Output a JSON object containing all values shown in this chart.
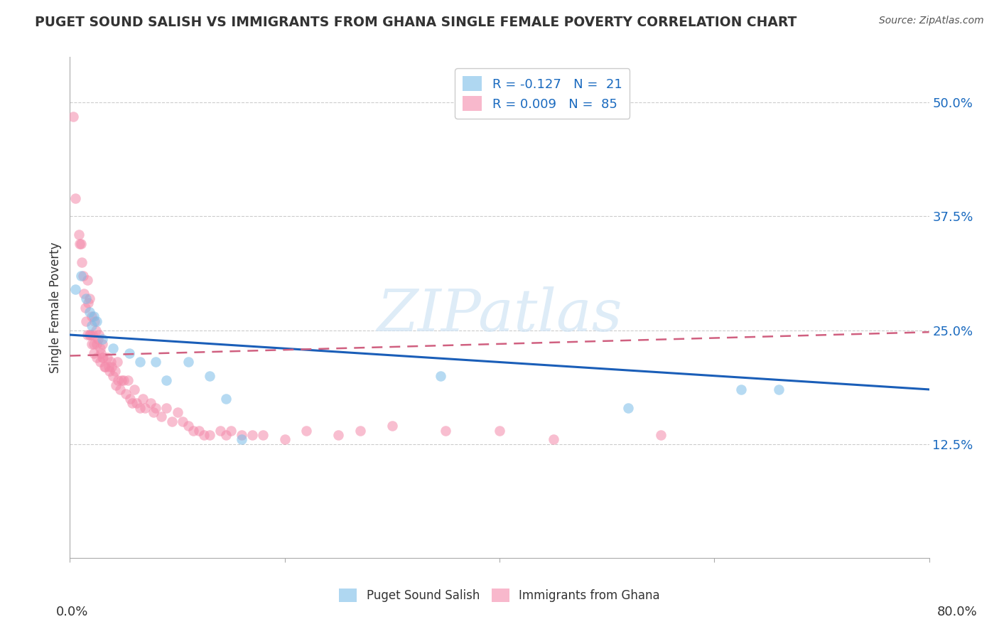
{
  "title": "PUGET SOUND SALISH VS IMMIGRANTS FROM GHANA SINGLE FEMALE POVERTY CORRELATION CHART",
  "source": "Source: ZipAtlas.com",
  "ylabel": "Single Female Poverty",
  "xlim": [
    0.0,
    0.8
  ],
  "ylim": [
    0.0,
    0.55
  ],
  "yticks": [
    0.125,
    0.25,
    0.375,
    0.5
  ],
  "ytick_labels": [
    "12.5%",
    "25.0%",
    "37.5%",
    "50.0%"
  ],
  "xtick_left_label": "0.0%",
  "xtick_right_label": "80.0%",
  "blue_scatter_x": [
    0.005,
    0.01,
    0.015,
    0.018,
    0.02,
    0.022,
    0.025,
    0.03,
    0.04,
    0.055,
    0.065,
    0.08,
    0.09,
    0.11,
    0.13,
    0.145,
    0.16,
    0.345,
    0.52,
    0.625,
    0.66
  ],
  "blue_scatter_y": [
    0.295,
    0.31,
    0.285,
    0.27,
    0.255,
    0.265,
    0.26,
    0.24,
    0.23,
    0.225,
    0.215,
    0.215,
    0.195,
    0.215,
    0.2,
    0.175,
    0.13,
    0.2,
    0.165,
    0.185,
    0.185
  ],
  "pink_scatter_x": [
    0.003,
    0.005,
    0.008,
    0.009,
    0.01,
    0.011,
    0.012,
    0.013,
    0.014,
    0.015,
    0.016,
    0.016,
    0.017,
    0.018,
    0.018,
    0.019,
    0.02,
    0.02,
    0.021,
    0.022,
    0.022,
    0.023,
    0.024,
    0.025,
    0.025,
    0.026,
    0.027,
    0.028,
    0.028,
    0.029,
    0.03,
    0.03,
    0.031,
    0.032,
    0.033,
    0.035,
    0.036,
    0.037,
    0.038,
    0.039,
    0.04,
    0.042,
    0.043,
    0.044,
    0.045,
    0.047,
    0.048,
    0.05,
    0.052,
    0.054,
    0.056,
    0.058,
    0.06,
    0.062,
    0.065,
    0.068,
    0.07,
    0.075,
    0.078,
    0.08,
    0.085,
    0.09,
    0.095,
    0.1,
    0.105,
    0.11,
    0.115,
    0.12,
    0.125,
    0.13,
    0.14,
    0.145,
    0.15,
    0.16,
    0.17,
    0.18,
    0.2,
    0.22,
    0.25,
    0.27,
    0.3,
    0.35,
    0.4,
    0.45,
    0.55
  ],
  "pink_scatter_y": [
    0.485,
    0.395,
    0.355,
    0.345,
    0.345,
    0.325,
    0.31,
    0.29,
    0.275,
    0.26,
    0.305,
    0.245,
    0.28,
    0.245,
    0.285,
    0.245,
    0.265,
    0.235,
    0.245,
    0.235,
    0.225,
    0.26,
    0.25,
    0.235,
    0.22,
    0.24,
    0.245,
    0.23,
    0.215,
    0.225,
    0.235,
    0.22,
    0.22,
    0.21,
    0.21,
    0.22,
    0.21,
    0.205,
    0.215,
    0.21,
    0.2,
    0.205,
    0.19,
    0.215,
    0.195,
    0.185,
    0.195,
    0.195,
    0.18,
    0.195,
    0.175,
    0.17,
    0.185,
    0.17,
    0.165,
    0.175,
    0.165,
    0.17,
    0.16,
    0.165,
    0.155,
    0.165,
    0.15,
    0.16,
    0.15,
    0.145,
    0.14,
    0.14,
    0.135,
    0.135,
    0.14,
    0.135,
    0.14,
    0.135,
    0.135,
    0.135,
    0.13,
    0.14,
    0.135,
    0.14,
    0.145,
    0.14,
    0.14,
    0.13,
    0.135
  ],
  "blue_line_x": [
    0.0,
    0.8
  ],
  "blue_line_y": [
    0.245,
    0.185
  ],
  "pink_line_x": [
    0.0,
    0.8
  ],
  "pink_line_y": [
    0.222,
    0.248
  ],
  "scatter_size": 110,
  "scatter_alpha": 0.55,
  "blue_color": "#7bbde8",
  "pink_color": "#f48aaa",
  "blue_line_color": "#1a5eb8",
  "pink_line_color": "#d06080",
  "watermark_text": "ZIPatlas",
  "background_color": "#ffffff",
  "grid_color": "#cccccc",
  "legend_blue_label": "R = -0.127   N =  21",
  "legend_pink_label": "R = 0.009   N =  85",
  "bottom_label_blue": "Puget Sound Salish",
  "bottom_label_pink": "Immigrants from Ghana"
}
